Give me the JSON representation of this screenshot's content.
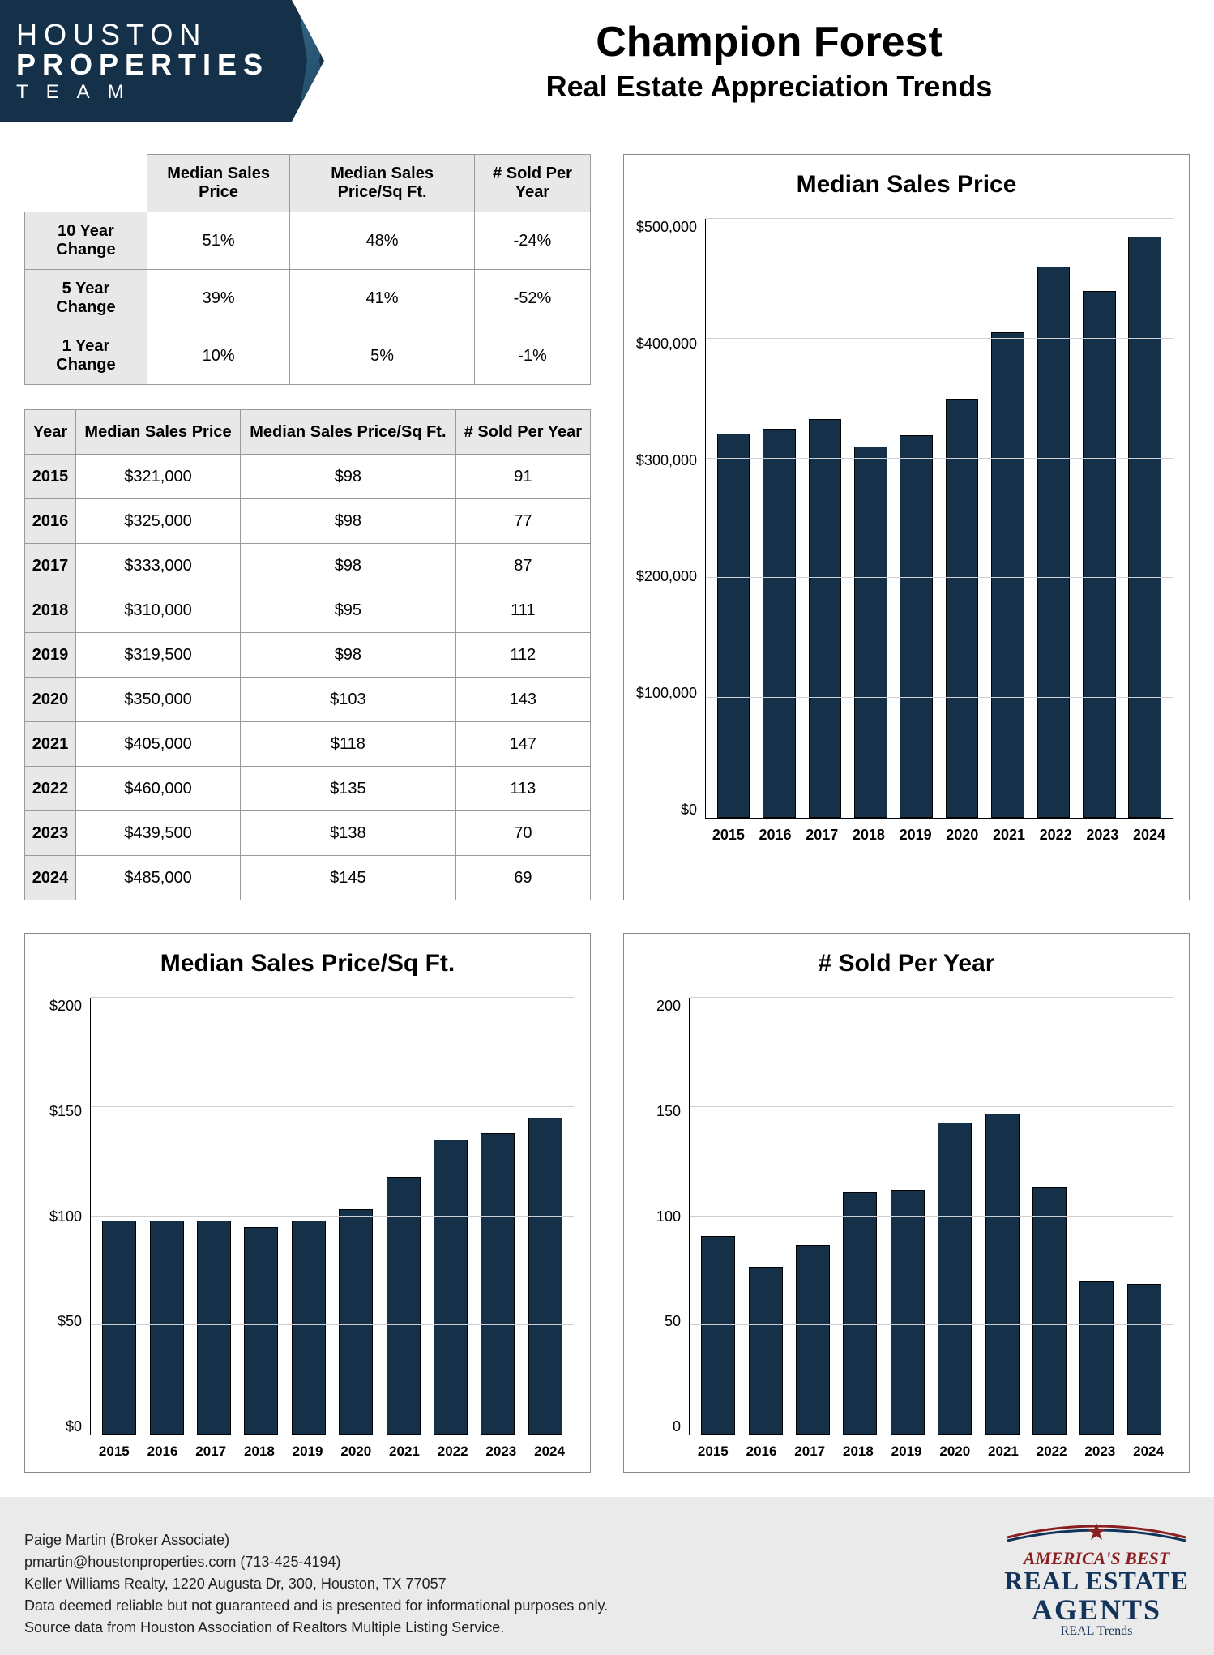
{
  "logo": {
    "l1": "HOUSTON",
    "l2": "PROPERTIES",
    "l3": "TEAM"
  },
  "title": {
    "main": "Champion Forest",
    "sub": "Real Estate Appreciation Trends"
  },
  "summary_table": {
    "columns": [
      "Median Sales Price",
      "Median Sales Price/Sq Ft.",
      "# Sold Per Year"
    ],
    "rows": [
      {
        "label": "10 Year Change",
        "cells": [
          "51%",
          "48%",
          "-24%"
        ]
      },
      {
        "label": "5 Year Change",
        "cells": [
          "39%",
          "41%",
          "-52%"
        ]
      },
      {
        "label": "1 Year Change",
        "cells": [
          "10%",
          "5%",
          "-1%"
        ]
      }
    ]
  },
  "data_table": {
    "columns": [
      "Year",
      "Median Sales Price",
      "Median Sales Price/Sq Ft.",
      "# Sold Per Year"
    ],
    "rows": [
      [
        "2015",
        "$321,000",
        "$98",
        "91"
      ],
      [
        "2016",
        "$325,000",
        "$98",
        "77"
      ],
      [
        "2017",
        "$333,000",
        "$98",
        "87"
      ],
      [
        "2018",
        "$310,000",
        "$95",
        "111"
      ],
      [
        "2019",
        "$319,500",
        "$98",
        "112"
      ],
      [
        "2020",
        "$350,000",
        "$103",
        "143"
      ],
      [
        "2021",
        "$405,000",
        "$118",
        "147"
      ],
      [
        "2022",
        "$460,000",
        "$135",
        "113"
      ],
      [
        "2023",
        "$439,500",
        "$138",
        "70"
      ],
      [
        "2024",
        "$485,000",
        "$145",
        "69"
      ]
    ]
  },
  "chart_price": {
    "type": "bar",
    "title": "Median Sales Price",
    "categories": [
      "2015",
      "2016",
      "2017",
      "2018",
      "2019",
      "2020",
      "2021",
      "2022",
      "2023",
      "2024"
    ],
    "values": [
      321000,
      325000,
      333000,
      310000,
      319500,
      350000,
      405000,
      460000,
      439500,
      485000
    ],
    "ylim": [
      0,
      500000
    ],
    "yticks": [
      "$500,000",
      "$400,000",
      "$300,000",
      "$200,000",
      "$100,000",
      "$0"
    ],
    "ytick_values": [
      500000,
      400000,
      300000,
      200000,
      100000,
      0
    ],
    "bar_color": "#143149",
    "grid_color": "#cfcfcf",
    "background_color": "#ffffff",
    "title_fontsize": 30,
    "tick_fontsize": 18
  },
  "chart_psf": {
    "type": "bar",
    "title": "Median Sales Price/Sq Ft.",
    "categories": [
      "2015",
      "2016",
      "2017",
      "2018",
      "2019",
      "2020",
      "2021",
      "2022",
      "2023",
      "2024"
    ],
    "values": [
      98,
      98,
      98,
      95,
      98,
      103,
      118,
      135,
      138,
      145
    ],
    "ylim": [
      0,
      200
    ],
    "yticks": [
      "$200",
      "$150",
      "$100",
      "$50",
      "$0"
    ],
    "ytick_values": [
      200,
      150,
      100,
      50,
      0
    ],
    "bar_color": "#143149",
    "grid_color": "#cfcfcf",
    "background_color": "#ffffff",
    "title_fontsize": 30,
    "tick_fontsize": 18
  },
  "chart_sold": {
    "type": "bar",
    "title": "# Sold Per Year",
    "categories": [
      "2015",
      "2016",
      "2017",
      "2018",
      "2019",
      "2020",
      "2021",
      "2022",
      "2023",
      "2024"
    ],
    "values": [
      91,
      77,
      87,
      111,
      112,
      143,
      147,
      113,
      70,
      69
    ],
    "ylim": [
      0,
      200
    ],
    "yticks": [
      "200",
      "150",
      "100",
      "50",
      "0"
    ],
    "ytick_values": [
      200,
      150,
      100,
      50,
      0
    ],
    "bar_color": "#143149",
    "grid_color": "#cfcfcf",
    "background_color": "#ffffff",
    "title_fontsize": 30,
    "tick_fontsize": 18
  },
  "footer": {
    "lines": [
      "Paige Martin (Broker Associate)",
      "pmartin@houstonproperties.com (713-425-4194)",
      "Keller Williams Realty, 1220 Augusta Dr, 300, Houston, TX 77057",
      "Data deemed reliable but not guaranteed and is presented for informational purposes only.",
      "Source data from Houston Association of Realtors Multiple Listing Service."
    ],
    "badge": {
      "l1": "AMERICA'S BEST",
      "l2": "REAL ESTATE",
      "l3": "AGENTS",
      "l4": "REAL Trends"
    }
  }
}
